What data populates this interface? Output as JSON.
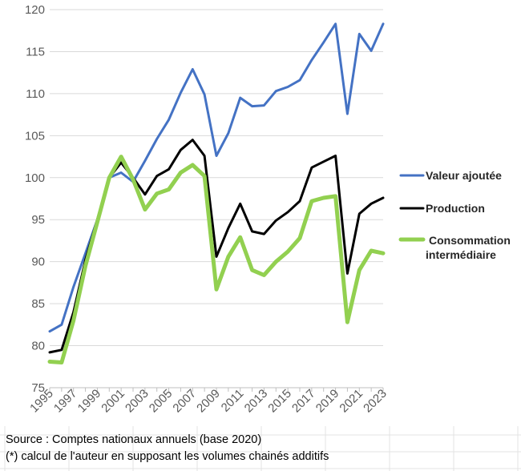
{
  "colors": {
    "grid": "#d9d9d9",
    "sheet_grid": "#e3e3e3",
    "axis": "#bfbfbf",
    "valeur_ajoutee": "#4472c4",
    "production": "#000000",
    "consommation": "#92d050"
  },
  "chart_data": {
    "type": "line",
    "title": "",
    "xlabel": "",
    "ylabel": "",
    "ylim": [
      75,
      120
    ],
    "yticks": [
      75,
      80,
      85,
      90,
      95,
      100,
      105,
      110,
      115,
      120
    ],
    "x": [
      1995,
      1996,
      1997,
      1998,
      1999,
      2000,
      2001,
      2002,
      2003,
      2004,
      2005,
      2006,
      2007,
      2008,
      2009,
      2010,
      2011,
      2012,
      2013,
      2014,
      2015,
      2016,
      2017,
      2018,
      2019,
      2020,
      2021,
      2022,
      2023
    ],
    "xtick_labels": [
      1995,
      1997,
      1999,
      2001,
      2003,
      2005,
      2007,
      2009,
      2011,
      2013,
      2015,
      2017,
      2019,
      2021,
      2023
    ],
    "grid": true,
    "legend_position": "right",
    "series": [
      {
        "name": "Valeur ajoutée",
        "color_key": "valeur_ajoutee",
        "width": 3,
        "values": [
          81.7,
          82.5,
          87.0,
          91.0,
          95.0,
          100.0,
          100.6,
          99.5,
          102.0,
          104.6,
          106.9,
          110.1,
          112.9,
          109.9,
          102.6,
          105.3,
          109.5,
          108.5,
          108.6,
          110.3,
          110.8,
          111.6,
          114.0,
          116.1,
          118.3,
          107.6,
          117.1,
          115.1,
          118.3
        ]
      },
      {
        "name": "Production",
        "color_key": "production",
        "width": 3,
        "values": [
          79.2,
          79.5,
          84.0,
          90.2,
          95.0,
          100.0,
          101.8,
          100.0,
          98.0,
          100.2,
          101.0,
          103.3,
          104.5,
          102.6,
          90.6,
          94.0,
          96.9,
          93.6,
          93.3,
          94.9,
          95.9,
          97.2,
          101.2,
          101.9,
          102.6,
          88.6,
          95.7,
          96.9,
          97.6
        ]
      },
      {
        "name": "Consommation intermédiaire",
        "color_key": "consommation",
        "width": 5,
        "values": [
          78.1,
          78.0,
          83.0,
          89.5,
          94.7,
          100.0,
          102.5,
          99.8,
          96.2,
          98.1,
          98.6,
          100.6,
          101.5,
          100.2,
          86.7,
          90.6,
          92.9,
          89.0,
          88.4,
          90.0,
          91.2,
          92.8,
          97.2,
          97.6,
          97.8,
          82.8,
          89.0,
          91.3,
          91.0
        ]
      }
    ]
  },
  "legend": [
    {
      "lines": [
        "Valeur ajoutée"
      ],
      "color_key": "valeur_ajoutee"
    },
    {
      "lines": [
        "Production"
      ],
      "color_key": "production"
    },
    {
      "lines": [
        "Consommation",
        "intermédiaire"
      ],
      "color_key": "consommation"
    }
  ],
  "notes": {
    "source": "Source : Comptes nationaux annuels (base 2020)",
    "footnote": "(*) calcul de l'auteur en supposant les volumes chainés additifs"
  }
}
